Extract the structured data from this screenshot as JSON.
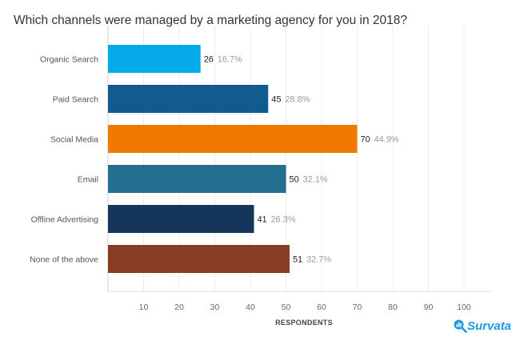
{
  "chart_data": {
    "type": "bar",
    "orientation": "horizontal",
    "title": "Which channels were managed by a marketing agency for you in 2018?",
    "xlabel": "RESPONDENTS",
    "ylabel": "",
    "xlim": [
      0,
      107
    ],
    "xticks": [
      10,
      20,
      30,
      40,
      50,
      60,
      70,
      80,
      90,
      100
    ],
    "grid": true,
    "categories": [
      "Organic Search",
      "Paid Search",
      "Social Media",
      "Email",
      "Offline Advertising",
      "None of the above"
    ],
    "values": [
      26,
      45,
      70,
      50,
      41,
      51
    ],
    "percent_labels": [
      "16.7%",
      "28.8%",
      "44.9%",
      "32.1%",
      "26.3%",
      "32.7%"
    ],
    "colors": [
      "#04aaea",
      "#115b8f",
      "#f07a00",
      "#226f8f",
      "#15365a",
      "#873d25"
    ]
  },
  "brand": {
    "name": "Survata",
    "icon": "magnifier-chart-icon",
    "color": "#1e9be0"
  }
}
